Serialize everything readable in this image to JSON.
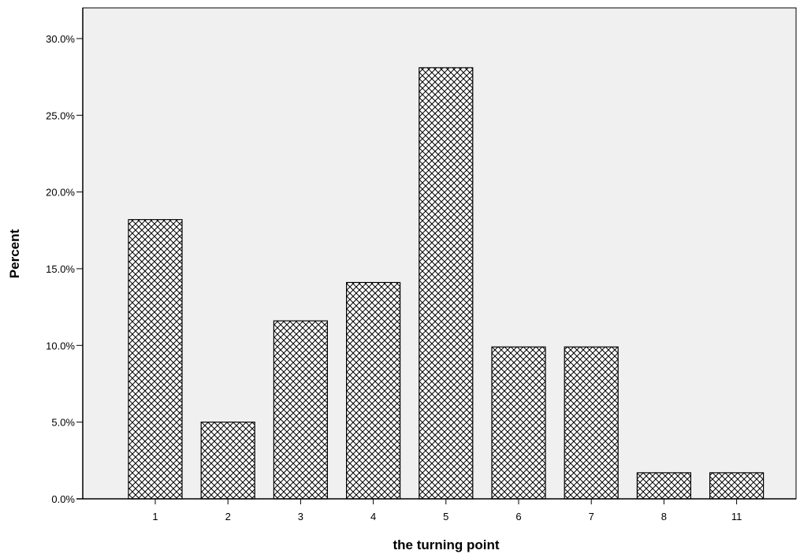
{
  "chart_data": {
    "type": "bar",
    "categories": [
      "1",
      "2",
      "3",
      "4",
      "5",
      "6",
      "7",
      "8",
      "11"
    ],
    "values": [
      18.2,
      5.0,
      11.6,
      14.1,
      28.1,
      9.9,
      9.9,
      1.7,
      1.7
    ],
    "xlabel": "the turning point",
    "ylabel": "Percent",
    "ylim": [
      0,
      32
    ],
    "yticks": [
      0,
      5,
      10,
      15,
      20,
      25,
      30
    ],
    "ytick_labels": [
      "0.0%",
      "5.0%",
      "10.0%",
      "15.0%",
      "20.0%",
      "25.0%",
      "30.0%"
    ],
    "grid": false,
    "bar_pattern": "crosshatch",
    "colors": {
      "plot_background": "#f0f0f0",
      "bar_fill": "#ffffff",
      "bar_edge": "#000000"
    }
  }
}
